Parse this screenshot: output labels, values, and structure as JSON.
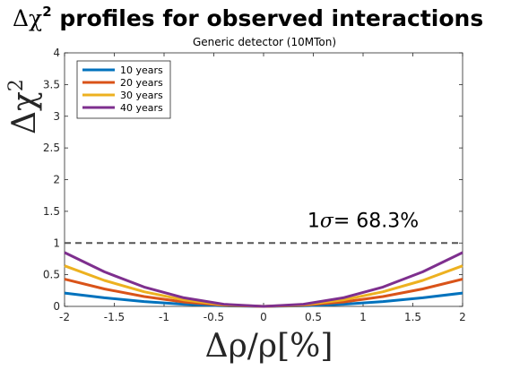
{
  "chart_data": {
    "type": "line",
    "title_prefix": "Δχ",
    "title_superscript": "2",
    "title_suffix": " profiles for observed interactions",
    "subtitle": "Generic detector (10MTon)",
    "ylabel_base": "Δχ",
    "ylabel_superscript": "2",
    "xlabel": "Δρ/ρ[%]",
    "xlim": [
      -2,
      2
    ],
    "ylim": [
      0,
      4
    ],
    "x_ticks": [
      -2,
      -1.5,
      -1,
      -0.5,
      0,
      0.5,
      1,
      1.5,
      2
    ],
    "x_tick_labels": [
      "-2",
      "-1.5",
      "-1",
      "-0.5",
      "0",
      "0.5",
      "1",
      "1.5",
      "2"
    ],
    "y_ticks": [
      0,
      0.5,
      1,
      1.5,
      2,
      2.5,
      3,
      3.5,
      4
    ],
    "y_tick_labels": [
      "0",
      "0.5",
      "1",
      "1.5",
      "2",
      "2.5",
      "3",
      "3.5",
      "4"
    ],
    "grid": false,
    "legend_position": "top-left",
    "x": [
      -2,
      -1.6,
      -1.2,
      -0.8,
      -0.4,
      0,
      0.4,
      0.8,
      1.2,
      1.6,
      2
    ],
    "series": [
      {
        "name": "10 years",
        "color": "#0072bd",
        "values": [
          0.21,
          0.135,
          0.076,
          0.034,
          0.008,
          0,
          0.008,
          0.034,
          0.076,
          0.135,
          0.21
        ]
      },
      {
        "name": "20 years",
        "color": "#d95319",
        "values": [
          0.43,
          0.275,
          0.155,
          0.069,
          0.017,
          0,
          0.017,
          0.069,
          0.155,
          0.275,
          0.43
        ]
      },
      {
        "name": "30 years",
        "color": "#edb120",
        "values": [
          0.64,
          0.41,
          0.23,
          0.102,
          0.026,
          0,
          0.026,
          0.102,
          0.23,
          0.41,
          0.64
        ]
      },
      {
        "name": "40 years",
        "color": "#7e2f8e",
        "values": [
          0.85,
          0.545,
          0.305,
          0.136,
          0.034,
          0,
          0.034,
          0.136,
          0.305,
          0.545,
          0.85
        ]
      }
    ],
    "reference_line": {
      "y": 1,
      "style": "dashed",
      "color": "#555555"
    },
    "annotation": {
      "prefix": "1",
      "sigma": "σ",
      "suffix": "= 68.3%",
      "x": 1.0,
      "y": 1.25
    }
  }
}
